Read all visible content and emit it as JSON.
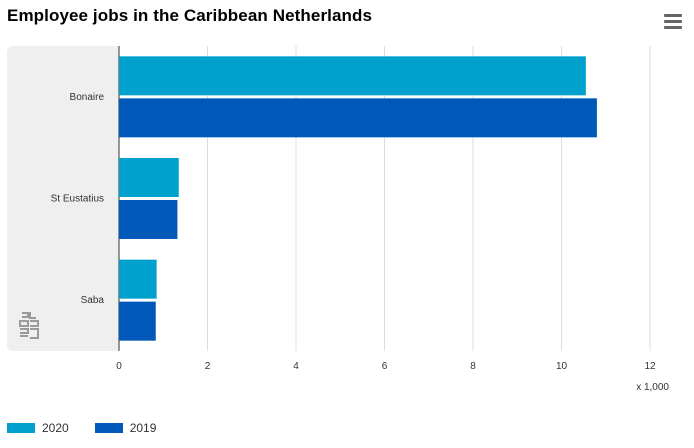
{
  "header": {
    "title": "Employee jobs in the Caribbean Netherlands",
    "menu_icon": "hamburger-menu-icon"
  },
  "logo": {
    "name": "cbs-logo-icon",
    "text": "cbs"
  },
  "chart_data": {
    "type": "bar",
    "orientation": "horizontal",
    "title": "Employee jobs in the Caribbean Netherlands",
    "categories": [
      "Bonaire",
      "St Eustatius",
      "Saba"
    ],
    "series": [
      {
        "name": "2020",
        "color": "#00a1cd",
        "values": [
          10.55,
          1.35,
          0.85
        ]
      },
      {
        "name": "2019",
        "color": "#0058b8",
        "values": [
          10.8,
          1.32,
          0.83
        ]
      }
    ],
    "xlim": [
      0,
      12
    ],
    "xticks": [
      "0",
      "2",
      "4",
      "6",
      "8",
      "10",
      "12"
    ],
    "x_unit_label": "x 1,000",
    "grid": true,
    "legend_position": "bottom-left"
  }
}
